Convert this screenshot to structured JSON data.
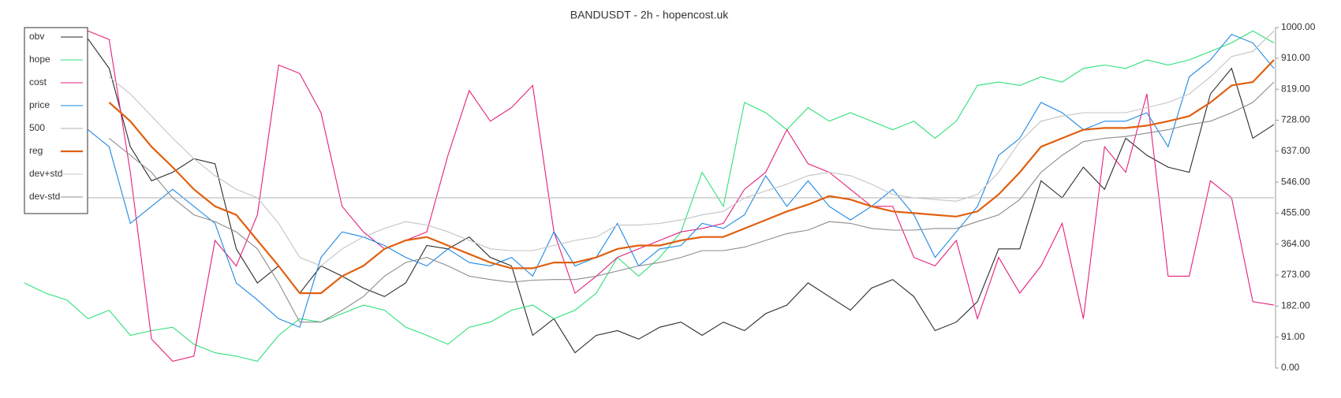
{
  "chart_data": {
    "type": "line",
    "title": "BANDUSDT - 2h - hopencost.uk",
    "categories": [
      null,
      null,
      null,
      null,
      null,
      null,
      null,
      null,
      null,
      null,
      null,
      null,
      null,
      null,
      null,
      null,
      null,
      null,
      null,
      null,
      null,
      null,
      null,
      null,
      null,
      null,
      null,
      null,
      null,
      null,
      null,
      null,
      null,
      null,
      null,
      null,
      null,
      null,
      null,
      null,
      null,
      null,
      null,
      null,
      null,
      null,
      null,
      null,
      null,
      null,
      null,
      null,
      null,
      null,
      null,
      null,
      null,
      null,
      null,
      null
    ],
    "ylim": [
      0,
      1000
    ],
    "yticks": [
      {
        "value": 0,
        "label": "0.00"
      },
      {
        "value": 91,
        "label": "91.00"
      },
      {
        "value": 182,
        "label": "182.00"
      },
      {
        "value": 273,
        "label": "273.00"
      },
      {
        "value": 364,
        "label": "364.00"
      },
      {
        "value": 455,
        "label": "455.00"
      },
      {
        "value": 546,
        "label": "546.00"
      },
      {
        "value": 637,
        "label": "637.00"
      },
      {
        "value": 728,
        "label": "728.00"
      },
      {
        "value": 819,
        "label": "819.00"
      },
      {
        "value": 910,
        "label": "910.00"
      },
      {
        "value": 1000,
        "label": "1000.00"
      }
    ],
    "legend": "upper left",
    "series": [
      {
        "name": "obv",
        "color": "#2b2b2b",
        "values": [
          null,
          null,
          null,
          967,
          880,
          650,
          550,
          575,
          615,
          600,
          350,
          250,
          300,
          220,
          300,
          270,
          235,
          210,
          250,
          360,
          350,
          385,
          325,
          300,
          96,
          145,
          45,
          96,
          110,
          85,
          120,
          135,
          96,
          135,
          110,
          160,
          185,
          250,
          210,
          170,
          235,
          260,
          210,
          110,
          135,
          195,
          350,
          350,
          550,
          500,
          590,
          525,
          675,
          625,
          590,
          575,
          805,
          880,
          675,
          715
        ]
      },
      {
        "name": "hope",
        "color": "#2ee07a",
        "values": [
          250,
          220,
          200,
          145,
          170,
          96,
          110,
          120,
          70,
          45,
          35,
          20,
          96,
          145,
          135,
          160,
          185,
          170,
          120,
          96,
          70,
          120,
          135,
          170,
          185,
          145,
          170,
          220,
          325,
          270,
          325,
          400,
          575,
          475,
          780,
          750,
          700,
          765,
          725,
          750,
          725,
          700,
          725,
          675,
          725,
          830,
          840,
          830,
          855,
          840,
          880,
          890,
          880,
          905,
          890,
          905,
          930,
          955,
          990,
          955
        ]
      },
      {
        "name": "cost",
        "color": "#e3207e",
        "values": [
          null,
          null,
          null,
          990,
          965,
          575,
          85,
          20,
          35,
          375,
          300,
          450,
          890,
          865,
          750,
          475,
          400,
          350,
          375,
          400,
          625,
          815,
          725,
          765,
          830,
          400,
          220,
          270,
          325,
          350,
          375,
          400,
          410,
          425,
          525,
          575,
          700,
          600,
          575,
          525,
          475,
          475,
          325,
          300,
          375,
          145,
          325,
          220,
          300,
          425,
          145,
          650,
          575,
          805,
          270,
          270,
          550,
          500,
          195,
          185
        ]
      },
      {
        "name": "price",
        "color": "#1e88e5",
        "values": [
          null,
          null,
          null,
          700,
          650,
          425,
          475,
          525,
          475,
          425,
          250,
          200,
          145,
          120,
          325,
          400,
          385,
          360,
          325,
          300,
          350,
          310,
          300,
          325,
          270,
          400,
          300,
          325,
          425,
          300,
          350,
          360,
          425,
          410,
          450,
          565,
          475,
          550,
          475,
          435,
          475,
          525,
          450,
          325,
          400,
          475,
          625,
          675,
          780,
          750,
          700,
          725,
          725,
          750,
          650,
          855,
          905,
          980,
          955,
          880
        ]
      },
      {
        "name": "500",
        "color": "#b0b0b0",
        "values": [
          500,
          500,
          500,
          500,
          500,
          500,
          500,
          500,
          500,
          500,
          500,
          500,
          500,
          500,
          500,
          500,
          500,
          500,
          500,
          500,
          500,
          500,
          500,
          500,
          500,
          500,
          500,
          500,
          500,
          500,
          500,
          500,
          500,
          500,
          500,
          500,
          500,
          500,
          500,
          500,
          500,
          500,
          500,
          500,
          500,
          500,
          500,
          500,
          500,
          500,
          500,
          500,
          500,
          500,
          500,
          500,
          500,
          500,
          500,
          500
        ]
      },
      {
        "name": "reg",
        "color": "#e06010",
        "values": [
          null,
          null,
          null,
          null,
          780,
          725,
          650,
          590,
          525,
          475,
          450,
          375,
          300,
          220,
          220,
          270,
          300,
          350,
          375,
          385,
          360,
          335,
          310,
          293,
          293,
          310,
          310,
          325,
          350,
          360,
          360,
          375,
          385,
          385,
          410,
          435,
          460,
          480,
          505,
          495,
          475,
          460,
          455,
          450,
          445,
          460,
          510,
          575,
          650,
          675,
          700,
          705,
          705,
          712,
          725,
          740,
          780,
          830,
          840,
          905
        ]
      },
      {
        "name": "dev+std",
        "color": "#c4c4c4",
        "values": [
          null,
          null,
          null,
          null,
          855,
          805,
          740,
          675,
          615,
          565,
          525,
          500,
          425,
          325,
          300,
          350,
          385,
          410,
          430,
          420,
          400,
          375,
          350,
          345,
          345,
          360,
          375,
          385,
          420,
          420,
          425,
          435,
          450,
          460,
          500,
          520,
          540,
          565,
          575,
          565,
          540,
          510,
          500,
          495,
          490,
          510,
          575,
          665,
          725,
          740,
          750,
          750,
          750,
          765,
          780,
          805,
          855,
          915,
          930,
          990
        ]
      },
      {
        "name": "dev-std",
        "color": "#8c8c8c",
        "values": [
          null,
          null,
          null,
          null,
          675,
          625,
          575,
          500,
          450,
          430,
          400,
          350,
          250,
          135,
          135,
          170,
          210,
          270,
          310,
          325,
          300,
          270,
          260,
          252,
          258,
          260,
          260,
          270,
          285,
          300,
          310,
          325,
          345,
          345,
          355,
          375,
          395,
          405,
          430,
          425,
          410,
          405,
          405,
          410,
          410,
          430,
          450,
          495,
          575,
          625,
          665,
          675,
          680,
          690,
          700,
          715,
          725,
          750,
          780,
          840
        ]
      }
    ]
  }
}
